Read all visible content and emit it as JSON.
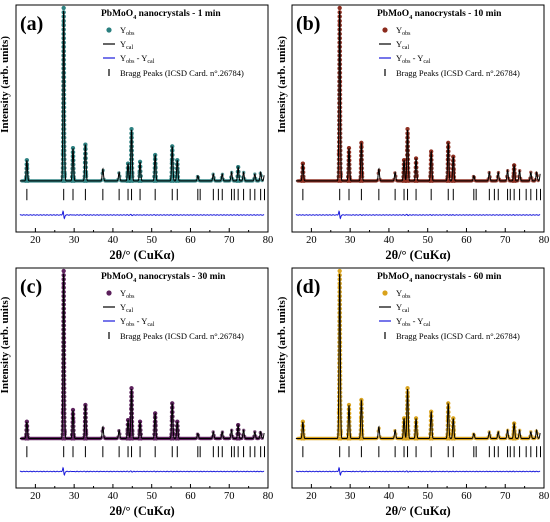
{
  "chart_data": [
    {
      "type": "line",
      "panel_label": "(a)",
      "title": "PbMoO4 nanocrystals - 1 min",
      "title_main": "PbMoO",
      "title_sub": "4",
      "title_rest": " nanocrystals - 1 min",
      "xlabel": "2θ/° (CuKα)",
      "ylabel": "Intensity (arb. units)",
      "xlim": [
        15,
        80
      ],
      "xticks": [
        "20",
        "30",
        "40",
        "50",
        "60",
        "70",
        "80"
      ],
      "obs_color": "#2a7f7f",
      "legend": {
        "obs": "Y",
        "obs_sub": "obs",
        "cal": "Y",
        "cal_sub": "cal",
        "diff": "Y",
        "diff_sub": "obs",
        "diff_mid": " - Y",
        "diff_sub2": "cal",
        "bragg": "Bragg Peaks (ICSD Card. n°.26784)"
      },
      "peaks": [
        {
          "x": 17.8,
          "h": 0.12
        },
        {
          "x": 27.3,
          "h": 1.0
        },
        {
          "x": 29.7,
          "h": 0.19
        },
        {
          "x": 32.9,
          "h": 0.21
        },
        {
          "x": 37.4,
          "h": 0.07
        },
        {
          "x": 41.6,
          "h": 0.05
        },
        {
          "x": 43.9,
          "h": 0.1
        },
        {
          "x": 44.8,
          "h": 0.3
        },
        {
          "x": 47.0,
          "h": 0.11
        },
        {
          "x": 50.9,
          "h": 0.15
        },
        {
          "x": 55.3,
          "h": 0.2
        },
        {
          "x": 56.6,
          "h": 0.12
        },
        {
          "x": 61.9,
          "h": 0.03
        },
        {
          "x": 65.9,
          "h": 0.04
        },
        {
          "x": 68.2,
          "h": 0.04
        },
        {
          "x": 70.6,
          "h": 0.05
        },
        {
          "x": 72.3,
          "h": 0.08
        },
        {
          "x": 73.7,
          "h": 0.05
        },
        {
          "x": 76.6,
          "h": 0.04
        },
        {
          "x": 78.1,
          "h": 0.05
        },
        {
          "x": 79.1,
          "h": 0.04
        }
      ],
      "bragg_positions": [
        17.8,
        27.3,
        29.7,
        32.9,
        37.4,
        41.6,
        43.9,
        44.8,
        47.0,
        50.9,
        55.3,
        56.6,
        61.9,
        62.5,
        65.9,
        67.2,
        68.2,
        70.6,
        71.3,
        72.3,
        73.7,
        75.4,
        76.6,
        78.1,
        79.1
      ]
    },
    {
      "type": "line",
      "panel_label": "(b)",
      "title": "PbMoO4 nanocrystals - 10 min",
      "title_main": "PbMoO",
      "title_sub": "4",
      "title_rest": " nanocrystals - 10 min",
      "xlabel": "2θ/° (CuKα)",
      "ylabel": "Intensity (arb. units)",
      "xlim": [
        15,
        80
      ],
      "xticks": [
        "20",
        "30",
        "40",
        "50",
        "60",
        "70",
        "80"
      ],
      "obs_color": "#8b2a1c",
      "legend": {
        "obs": "Y",
        "obs_sub": "obs",
        "cal": "Y",
        "cal_sub": "cal",
        "diff": "Y",
        "diff_sub": "obs",
        "diff_mid": " - Y",
        "diff_sub2": "cal",
        "bragg": "Bragg Peaks (ICSD Card. n°.26784)"
      },
      "peaks": [
        {
          "x": 17.8,
          "h": 0.1
        },
        {
          "x": 27.3,
          "h": 1.0
        },
        {
          "x": 29.7,
          "h": 0.19
        },
        {
          "x": 32.9,
          "h": 0.22
        },
        {
          "x": 37.4,
          "h": 0.07
        },
        {
          "x": 41.6,
          "h": 0.05
        },
        {
          "x": 43.9,
          "h": 0.12
        },
        {
          "x": 44.8,
          "h": 0.3
        },
        {
          "x": 47.0,
          "h": 0.13
        },
        {
          "x": 50.9,
          "h": 0.17
        },
        {
          "x": 55.3,
          "h": 0.22
        },
        {
          "x": 56.6,
          "h": 0.14
        },
        {
          "x": 61.9,
          "h": 0.03
        },
        {
          "x": 65.9,
          "h": 0.05
        },
        {
          "x": 68.2,
          "h": 0.05
        },
        {
          "x": 70.6,
          "h": 0.06
        },
        {
          "x": 72.3,
          "h": 0.09
        },
        {
          "x": 73.7,
          "h": 0.06
        },
        {
          "x": 76.6,
          "h": 0.05
        },
        {
          "x": 78.1,
          "h": 0.05
        },
        {
          "x": 79.1,
          "h": 0.05
        }
      ],
      "bragg_positions": [
        17.8,
        27.3,
        29.7,
        32.9,
        37.4,
        41.6,
        43.9,
        44.8,
        47.0,
        50.9,
        55.3,
        56.6,
        61.9,
        62.5,
        65.9,
        67.2,
        68.2,
        70.6,
        71.3,
        72.3,
        73.7,
        75.4,
        76.6,
        78.1,
        79.1
      ]
    },
    {
      "type": "line",
      "panel_label": "(c)",
      "title": "PbMoO4 nanocrystals - 30 min",
      "title_main": "PbMoO",
      "title_sub": "4",
      "title_rest": " nanocrystals - 30 min",
      "xlabel": "2θ/° (CuKα)",
      "ylabel": "Intensity (arb. units)",
      "xlim": [
        15,
        80
      ],
      "xticks": [
        "20",
        "30",
        "40",
        "50",
        "60",
        "70",
        "80"
      ],
      "obs_color": "#5b1f5b",
      "legend": {
        "obs": "Y",
        "obs_sub": "obs",
        "cal": "Y",
        "cal_sub": "cal",
        "diff": "Y",
        "diff_sub": "obs",
        "diff_mid": " - Y",
        "diff_sub2": "cal",
        "bragg": "Bragg Peaks (ICSD Card. n°.26784)"
      },
      "peaks": [
        {
          "x": 17.8,
          "h": 0.1
        },
        {
          "x": 27.3,
          "h": 1.0
        },
        {
          "x": 29.7,
          "h": 0.17
        },
        {
          "x": 32.9,
          "h": 0.2
        },
        {
          "x": 37.4,
          "h": 0.07
        },
        {
          "x": 41.6,
          "h": 0.05
        },
        {
          "x": 43.9,
          "h": 0.11
        },
        {
          "x": 44.8,
          "h": 0.3
        },
        {
          "x": 47.0,
          "h": 0.1
        },
        {
          "x": 50.9,
          "h": 0.15
        },
        {
          "x": 55.3,
          "h": 0.21
        },
        {
          "x": 56.6,
          "h": 0.1
        },
        {
          "x": 61.9,
          "h": 0.03
        },
        {
          "x": 65.9,
          "h": 0.04
        },
        {
          "x": 68.2,
          "h": 0.04
        },
        {
          "x": 70.6,
          "h": 0.05
        },
        {
          "x": 72.3,
          "h": 0.08
        },
        {
          "x": 73.7,
          "h": 0.05
        },
        {
          "x": 76.6,
          "h": 0.04
        },
        {
          "x": 78.1,
          "h": 0.04
        },
        {
          "x": 79.1,
          "h": 0.04
        }
      ],
      "bragg_positions": [
        17.8,
        27.3,
        29.7,
        32.9,
        37.4,
        41.6,
        43.9,
        44.8,
        47.0,
        50.9,
        55.3,
        56.6,
        61.9,
        62.5,
        65.9,
        67.2,
        68.2,
        70.6,
        71.3,
        72.3,
        73.7,
        75.4,
        76.6,
        78.1,
        79.1
      ]
    },
    {
      "type": "line",
      "panel_label": "(d)",
      "title": "PbMoO4 nanocrystals - 60 min",
      "title_main": "PbMoO",
      "title_sub": "4",
      "title_rest": " nanocrystals - 60 min",
      "xlabel": "2θ/° (CuKα)",
      "ylabel": "Intensity (arb. units)",
      "xlim": [
        15,
        80
      ],
      "xticks": [
        "20",
        "30",
        "40",
        "50",
        "60",
        "70",
        "80"
      ],
      "obs_color": "#d9a21b",
      "legend": {
        "obs": "Y",
        "obs_sub": "obs",
        "cal": "Y",
        "cal_sub": "cal",
        "diff": "Y",
        "diff_sub": "obs",
        "diff_mid": " - Y",
        "diff_sub2": "cal",
        "bragg": "Bragg Peaks (ICSD Card. n°.26784)"
      },
      "peaks": [
        {
          "x": 17.8,
          "h": 0.1
        },
        {
          "x": 27.3,
          "h": 1.0
        },
        {
          "x": 29.7,
          "h": 0.2
        },
        {
          "x": 32.9,
          "h": 0.23
        },
        {
          "x": 37.4,
          "h": 0.07
        },
        {
          "x": 41.6,
          "h": 0.05
        },
        {
          "x": 43.9,
          "h": 0.12
        },
        {
          "x": 44.8,
          "h": 0.3
        },
        {
          "x": 47.0,
          "h": 0.12
        },
        {
          "x": 50.9,
          "h": 0.16
        },
        {
          "x": 55.3,
          "h": 0.21
        },
        {
          "x": 56.6,
          "h": 0.12
        },
        {
          "x": 61.9,
          "h": 0.03
        },
        {
          "x": 65.9,
          "h": 0.04
        },
        {
          "x": 68.2,
          "h": 0.04
        },
        {
          "x": 70.6,
          "h": 0.05
        },
        {
          "x": 72.3,
          "h": 0.09
        },
        {
          "x": 73.7,
          "h": 0.05
        },
        {
          "x": 76.6,
          "h": 0.04
        },
        {
          "x": 78.1,
          "h": 0.05
        },
        {
          "x": 79.1,
          "h": 0.04
        }
      ],
      "bragg_positions": [
        17.8,
        27.3,
        29.7,
        32.9,
        37.4,
        41.6,
        43.9,
        44.8,
        47.0,
        50.9,
        55.3,
        56.6,
        61.9,
        62.5,
        65.9,
        67.2,
        68.2,
        70.6,
        71.3,
        72.3,
        73.7,
        75.4,
        76.6,
        78.1,
        79.1
      ]
    }
  ]
}
